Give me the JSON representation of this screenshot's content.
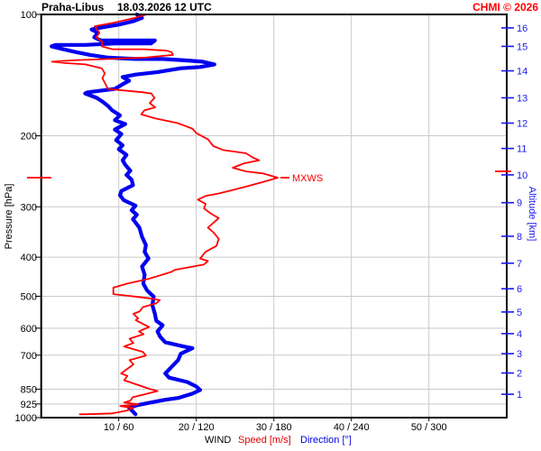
{
  "header": {
    "station": "Praha-Libus",
    "datetime": "18.03.2026 12 UTC",
    "copyright": "CHMI © 2026"
  },
  "colors": {
    "speed_line": "#ff0000",
    "direction_line": "#0000f0",
    "right_axis": "#1a1aee",
    "grid": "#c9c9c9",
    "frame": "#000000",
    "copyright_red": "#ff0000",
    "speed_label_red": "#e00000",
    "direction_label_blue": "#0000e0"
  },
  "axes": {
    "left": {
      "title": "Pressure [hPa]",
      "tick_labels": [
        100,
        200,
        300,
        400,
        500,
        600,
        700,
        850,
        925,
        1000
      ],
      "gridline_pressures": [
        200,
        300,
        400,
        500,
        600,
        700,
        850,
        925
      ]
    },
    "right": {
      "title": "Altitude [km]",
      "ticks": [
        {
          "km": 16,
          "p": 108
        },
        {
          "km": 15,
          "p": 120
        },
        {
          "km": 14,
          "p": 138
        },
        {
          "km": 13,
          "p": 161
        },
        {
          "km": 12,
          "p": 186
        },
        {
          "km": 11,
          "p": 215
        },
        {
          "km": 10,
          "p": 250
        },
        {
          "km": 9,
          "p": 293
        },
        {
          "km": 8,
          "p": 355
        },
        {
          "km": 7,
          "p": 414
        },
        {
          "km": 6,
          "p": 479
        },
        {
          "km": 5,
          "p": 547
        },
        {
          "km": 4,
          "p": 619
        },
        {
          "km": 3,
          "p": 694
        },
        {
          "km": 2,
          "p": 775
        },
        {
          "km": 1,
          "p": 875
        }
      ]
    },
    "bottom": {
      "group_label": "WIND",
      "speed_label": "Speed [m/s]",
      "direction_label": "Direction [°]",
      "ticks": [
        {
          "speed": 10,
          "dir": 60
        },
        {
          "speed": 20,
          "dir": 120
        },
        {
          "speed": 30,
          "dir": 180
        },
        {
          "speed": 40,
          "dir": 240
        },
        {
          "speed": 50,
          "dir": 300
        }
      ]
    }
  },
  "mxws": {
    "label": "MXWS",
    "speed_ms": 30.5,
    "pressure_hPa": 254,
    "altitude_tick_pressure_hPa": 245
  },
  "chart_data": {
    "type": "line",
    "title": "Praha-Libus 18.03.2026 12 UTC wind sounding",
    "x_axis": {
      "speed_range_ms": [
        0,
        60
      ],
      "direction_range_deg": [
        0,
        360
      ]
    },
    "y_axis": {
      "pressure_range_hPa": [
        100,
        1000
      ],
      "scale": "log"
    },
    "legend_position": "bottom",
    "grid": true,
    "series": [
      {
        "name": "Speed [m/s]",
        "units": "m/s vs hPa",
        "points": [
          [
            13.6,
            100
          ],
          [
            12.1,
            102
          ],
          [
            9.2,
            105
          ],
          [
            6.9,
            107
          ],
          [
            7.5,
            111
          ],
          [
            7.1,
            114
          ],
          [
            7.9,
            117
          ],
          [
            7.8,
            120
          ],
          [
            9.2,
            122
          ],
          [
            13.3,
            122
          ],
          [
            16.2,
            123
          ],
          [
            16.8,
            124
          ],
          [
            17.0,
            126
          ],
          [
            13.3,
            128
          ],
          [
            8.6,
            129
          ],
          [
            4.0,
            130
          ],
          [
            1.4,
            131
          ],
          [
            3.1,
            132
          ],
          [
            5.7,
            133
          ],
          [
            7.8,
            136
          ],
          [
            8.2,
            140
          ],
          [
            7.9,
            144
          ],
          [
            8.3,
            149
          ],
          [
            8.6,
            153
          ],
          [
            13.1,
            156
          ],
          [
            14.2,
            157
          ],
          [
            14.6,
            161
          ],
          [
            14.0,
            166
          ],
          [
            14.7,
            170
          ],
          [
            13.3,
            173
          ],
          [
            12.9,
            177
          ],
          [
            14.7,
            181
          ],
          [
            17.6,
            186
          ],
          [
            19.5,
            192
          ],
          [
            20.0,
            197
          ],
          [
            21.5,
            204
          ],
          [
            22.2,
            212
          ],
          [
            23.5,
            217
          ],
          [
            26.4,
            221
          ],
          [
            27.4,
            227
          ],
          [
            28.1,
            230
          ],
          [
            26.2,
            234
          ],
          [
            24.7,
            240
          ],
          [
            26.4,
            245
          ],
          [
            28.6,
            248
          ],
          [
            30.5,
            254
          ],
          [
            28.4,
            261
          ],
          [
            26.2,
            268
          ],
          [
            22.9,
            278
          ],
          [
            21.2,
            282
          ],
          [
            20.2,
            288
          ],
          [
            21.2,
            295
          ],
          [
            21.0,
            303
          ],
          [
            21.9,
            312
          ],
          [
            22.9,
            320
          ],
          [
            21.5,
            338
          ],
          [
            22.2,
            347
          ],
          [
            22.9,
            360
          ],
          [
            22.6,
            375
          ],
          [
            21.2,
            388
          ],
          [
            20.5,
            403
          ],
          [
            21.5,
            409
          ],
          [
            21.0,
            417
          ],
          [
            17.2,
            430
          ],
          [
            16.8,
            435
          ],
          [
            13.8,
            453
          ],
          [
            11.1,
            465
          ],
          [
            9.3,
            476
          ],
          [
            9.3,
            494
          ],
          [
            12.1,
            501
          ],
          [
            14.0,
            506
          ],
          [
            15.3,
            511
          ],
          [
            14.8,
            521
          ],
          [
            13.1,
            532
          ],
          [
            12.7,
            545
          ],
          [
            11.9,
            553
          ],
          [
            12.5,
            567
          ],
          [
            12.2,
            573
          ],
          [
            13.2,
            587
          ],
          [
            13.9,
            596
          ],
          [
            12.6,
            611
          ],
          [
            13.2,
            621
          ],
          [
            11.4,
            637
          ],
          [
            11.9,
            653
          ],
          [
            10.7,
            666
          ],
          [
            13.1,
            687
          ],
          [
            13.5,
            702
          ],
          [
            11.4,
            720
          ],
          [
            11.9,
            738
          ],
          [
            10.3,
            777
          ],
          [
            11.1,
            788
          ],
          [
            10.7,
            808
          ],
          [
            14.1,
            850
          ],
          [
            15.0,
            859
          ],
          [
            13.3,
            876
          ],
          [
            11.8,
            890
          ],
          [
            11.5,
            908
          ],
          [
            10.7,
            917
          ],
          [
            12.5,
            927
          ],
          [
            10.2,
            936
          ],
          [
            11.9,
            946
          ],
          [
            11.0,
            961
          ],
          [
            9.2,
            976
          ],
          [
            5.7,
            981
          ],
          [
            4.9,
            981
          ]
        ]
      },
      {
        "name": "Direction [°]",
        "units": "deg vs hPa",
        "points": [
          [
            74,
            100
          ],
          [
            78,
            102
          ],
          [
            71,
            104
          ],
          [
            60,
            106
          ],
          [
            45,
            108
          ],
          [
            39,
            109
          ],
          [
            44,
            111
          ],
          [
            41,
            114
          ],
          [
            46,
            116
          ],
          [
            73,
            116
          ],
          [
            88,
            116
          ],
          [
            85,
            118
          ],
          [
            59,
            118
          ],
          [
            34,
            119
          ],
          [
            11,
            119
          ],
          [
            8,
            120
          ],
          [
            17,
            122
          ],
          [
            27,
            124
          ],
          [
            38,
            126
          ],
          [
            52,
            128
          ],
          [
            73,
            129
          ],
          [
            94,
            129
          ],
          [
            111,
            130
          ],
          [
            125,
            131
          ],
          [
            134,
            133
          ],
          [
            123,
            135
          ],
          [
            108,
            136
          ],
          [
            90,
            139
          ],
          [
            73,
            141
          ],
          [
            63,
            143
          ],
          [
            68,
            146
          ],
          [
            63,
            149
          ],
          [
            57,
            153
          ],
          [
            36,
            156
          ],
          [
            34,
            157
          ],
          [
            43,
            161
          ],
          [
            48,
            165
          ],
          [
            52,
            169
          ],
          [
            55,
            173
          ],
          [
            61,
            178
          ],
          [
            57,
            183
          ],
          [
            65,
            187
          ],
          [
            57,
            193
          ],
          [
            62,
            198
          ],
          [
            58,
            205
          ],
          [
            63,
            211
          ],
          [
            60,
            216
          ],
          [
            66,
            223
          ],
          [
            63,
            230
          ],
          [
            65,
            236
          ],
          [
            69,
            244
          ],
          [
            66,
            250
          ],
          [
            70,
            257
          ],
          [
            71,
            265
          ],
          [
            62,
            274
          ],
          [
            61,
            281
          ],
          [
            64,
            289
          ],
          [
            73,
            298
          ],
          [
            70,
            306
          ],
          [
            74,
            314
          ],
          [
            71,
            322
          ],
          [
            76,
            338
          ],
          [
            78,
            356
          ],
          [
            81,
            373
          ],
          [
            80,
            388
          ],
          [
            83,
            403
          ],
          [
            78,
            422
          ],
          [
            80,
            442
          ],
          [
            79,
            465
          ],
          [
            82,
            484
          ],
          [
            87,
            501
          ],
          [
            86,
            526
          ],
          [
            88,
            553
          ],
          [
            89,
            575
          ],
          [
            94,
            590
          ],
          [
            90,
            611
          ],
          [
            92,
            630
          ],
          [
            96,
            650
          ],
          [
            110,
            666
          ],
          [
            117,
            673
          ],
          [
            108,
            694
          ],
          [
            106,
            720
          ],
          [
            102,
            742
          ],
          [
            96,
            777
          ],
          [
            99,
            796
          ],
          [
            113,
            816
          ],
          [
            120,
            837
          ],
          [
            123,
            854
          ],
          [
            117,
            872
          ],
          [
            106,
            894
          ],
          [
            96,
            903
          ],
          [
            85,
            917
          ],
          [
            74,
            932
          ],
          [
            68,
            946
          ],
          [
            71,
            966
          ],
          [
            73,
            981
          ]
        ]
      }
    ]
  }
}
